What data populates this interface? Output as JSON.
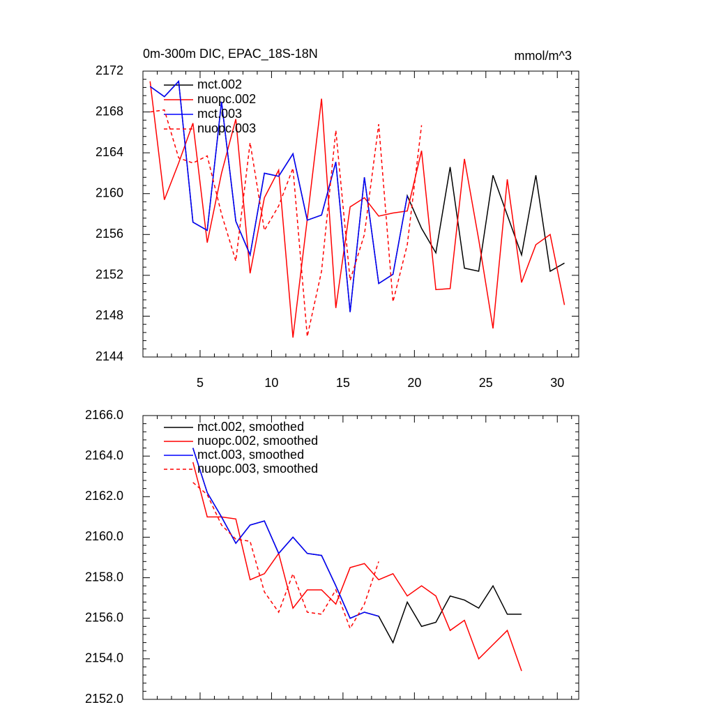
{
  "chart_data": [
    {
      "type": "line",
      "title": "0m-300m DIC, EPAC_18S-18N",
      "subtitle": "mmol/m^3",
      "x": [
        1.5,
        2.5,
        3.5,
        4.5,
        5.5,
        6.5,
        7.5,
        8.5,
        9.5,
        10.5,
        11.5,
        12.5,
        13.5,
        14.5,
        15.5,
        16.5,
        17.5,
        18.5,
        19.5,
        20.5,
        21.5,
        22.5,
        23.5,
        24.5,
        25.5,
        26.5,
        27.5,
        28.5,
        29.5,
        30.5
      ],
      "series": [
        {
          "name": "mct.002",
          "color": "#000000",
          "dash": false,
          "values": [
            2170.5,
            2169.5,
            2171,
            2157.2,
            2156.4,
            2169,
            2157.3,
            2154,
            2162,
            2161.7,
            2163.9,
            2157.4,
            2157.9,
            2163.1,
            2148.4,
            2161.6,
            2151.2,
            2152.1,
            2159.8,
            2156.6,
            2154.2,
            2162.6,
            2152.7,
            2152.4,
            2161.8,
            2157.9,
            2154,
            2161.8,
            2152.4,
            2153.2
          ]
        },
        {
          "name": "nuopc.002",
          "color": "#ff0000",
          "dash": false,
          "values": [
            2171,
            2159.4,
            2163,
            2166.9,
            2155.2,
            2162,
            2167.3,
            2152.2,
            2159.6,
            2162.3,
            2145.9,
            2157.5,
            2169.3,
            2148.8,
            2158.7,
            2159.6,
            2157.8,
            2158.1,
            2158.3,
            2164.2,
            2150.6,
            2150.7,
            2163.4,
            2155.5,
            2146.8,
            2161.4,
            2151.3,
            2155,
            2156,
            2149.1
          ]
        },
        {
          "name": "mct.003",
          "color": "#0000ff",
          "dash": false,
          "values": [
            2170.5,
            2169.5,
            2171,
            2157.2,
            2156.4,
            2169,
            2157.3,
            2154,
            2162,
            2161.7,
            2163.9,
            2157.4,
            2157.9,
            2163.1,
            2148.4,
            2161.6,
            2151.2,
            2152.1,
            2159.8,
            null,
            null,
            null,
            null,
            null,
            null,
            null,
            null,
            null,
            null,
            null
          ]
        },
        {
          "name": "nuopc.003",
          "color": "#ff0000",
          "dash": true,
          "values": [
            2168,
            2168.2,
            2163.5,
            2163,
            2163.7,
            2158,
            2153.4,
            2165,
            2156.4,
            2158.8,
            2162.5,
            2146,
            2152.4,
            2166.2,
            2151.5,
            2156,
            2166.8,
            2149.4,
            2155,
            2166.7,
            null,
            null,
            null,
            null,
            null,
            null,
            null,
            null,
            null,
            null
          ]
        }
      ],
      "xlim": [
        1,
        31.5
      ],
      "ylim": [
        2144,
        2172
      ],
      "xticks": [
        5,
        10,
        15,
        20,
        25,
        30
      ],
      "yticks": [
        2144,
        2148,
        2152,
        2156,
        2160,
        2164,
        2168,
        2172
      ],
      "show_xtick_labels": true
    },
    {
      "type": "line",
      "x": [
        4.5,
        5.5,
        6.5,
        7.5,
        8.5,
        9.5,
        10.5,
        11.5,
        12.5,
        13.5,
        14.5,
        15.5,
        16.5,
        17.5,
        18.5,
        19.5,
        20.5,
        21.5,
        22.5,
        23.5,
        24.5,
        25.5,
        26.5,
        27.5
      ],
      "series": [
        {
          "name": "mct.002, smoothed",
          "color": "#000000",
          "dash": false,
          "values": [
            2164.4,
            2162.2,
            2161,
            2159.7,
            2160.6,
            2160.8,
            2159.2,
            2160,
            2159.2,
            2159.1,
            2157.6,
            2156,
            2156.3,
            2156.1,
            2154.8,
            2156.8,
            2155.6,
            2155.8,
            2157.1,
            2156.9,
            2156.5,
            2157.6,
            2156.2,
            2156.2
          ]
        },
        {
          "name": "nuopc.002, smoothed",
          "color": "#ff0000",
          "dash": false,
          "values": [
            2163.7,
            2161,
            2161,
            2160.9,
            2157.9,
            2158.2,
            2159.2,
            2156.5,
            2157.4,
            2157.4,
            2156.7,
            2158.5,
            2158.7,
            2157.9,
            2158.2,
            2157.1,
            2157.6,
            2157.1,
            2155.4,
            2155.9,
            2154,
            2154.7,
            2155.4,
            2153.4
          ]
        },
        {
          "name": "mct.003, smoothed",
          "color": "#0000ff",
          "dash": false,
          "values": [
            2164.4,
            2162.2,
            2161,
            2159.7,
            2160.6,
            2160.8,
            2159.2,
            2160,
            2159.2,
            2159.1,
            2157.6,
            2156,
            2156.3,
            2156.1,
            null,
            null,
            null,
            null,
            null,
            null,
            null,
            null,
            null,
            null
          ]
        },
        {
          "name": "nuopc.003, smoothed",
          "color": "#ff0000",
          "dash": true,
          "values": [
            2162.7,
            2162.1,
            2160.6,
            2159.9,
            2159.8,
            2157.3,
            2156.3,
            2158.2,
            2156.3,
            2156.2,
            2157.4,
            2155.5,
            2156.7,
            2158.8,
            null,
            null,
            null,
            null,
            null,
            null,
            null,
            null,
            null,
            null
          ]
        }
      ],
      "xlim": [
        1,
        31.5
      ],
      "ylim": [
        2152,
        2166
      ],
      "xticks": [
        5,
        10,
        15,
        20,
        25,
        30
      ],
      "yticks": [
        {
          "value": 2152,
          "label": "2152.0"
        },
        {
          "value": 2154,
          "label": "2154.0"
        },
        {
          "value": 2156,
          "label": "2156.0"
        },
        {
          "value": 2158,
          "label": "2158.0"
        },
        {
          "value": 2160,
          "label": "2160.0"
        },
        {
          "value": 2162,
          "label": "2162.0"
        },
        {
          "value": 2164,
          "label": "2164.0"
        },
        {
          "value": 2166,
          "label": "2166.0"
        }
      ],
      "show_xtick_labels": false
    }
  ]
}
